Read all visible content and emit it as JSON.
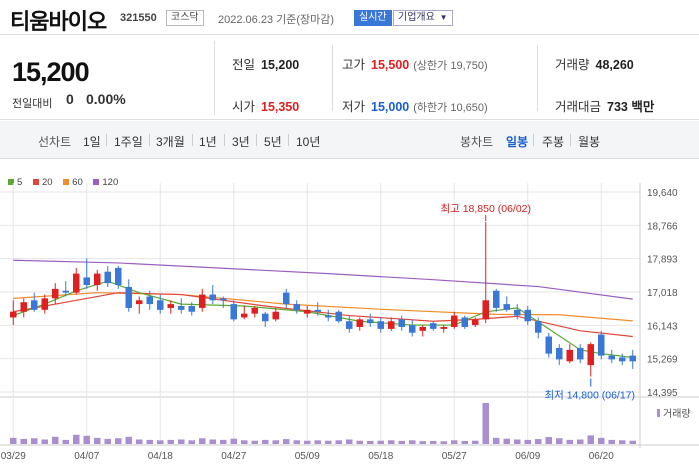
{
  "header": {
    "name": "티움바이오",
    "code": "321550",
    "market": "코스닥",
    "date_text": "2022.06.23 기준(장마감)",
    "realtime_label": "실시간",
    "company_label": "기업개요"
  },
  "quote": {
    "price": "15,200",
    "change_label": "전일대비",
    "change_value": "0",
    "change_pct": "0.00%",
    "prev_close_label": "전일",
    "prev_close": "15,200",
    "high_label": "고가",
    "high": "15,500",
    "upper_limit": "(상한가 19,750)",
    "volume_label": "거래량",
    "volume": "48,260",
    "open_label": "시가",
    "open": "15,350",
    "low_label": "저가",
    "low": "15,000",
    "lower_limit": "(하한가 10,650)",
    "amount_label": "거래대금",
    "amount": "733 백만"
  },
  "tabs": {
    "line_label": "선차트",
    "line_periods": [
      "1일",
      "1주일",
      "3개월",
      "1년",
      "3년",
      "5년",
      "10년"
    ],
    "candle_label": "봉차트",
    "candle_periods": [
      "일봉",
      "주봉",
      "월봉"
    ],
    "candle_active": "일봉"
  },
  "legend": [
    {
      "label": "5",
      "color": "#5aa832"
    },
    {
      "label": "20",
      "color": "#e0463a"
    },
    {
      "label": "60",
      "color": "#f08c2a"
    },
    {
      "label": "120",
      "color": "#9b5fc0"
    }
  ],
  "colors": {
    "up": "#e02020",
    "down": "#3a78d8",
    "grid": "#e6e6e6",
    "volume": "#a98fd0"
  },
  "chart_data": {
    "type": "candlestick",
    "y_ticks": [
      "19,640",
      "18,766",
      "17,893",
      "17,018",
      "16,143",
      "15,269",
      "14,395"
    ],
    "ylim": [
      14395,
      19640
    ],
    "x_tick_labels": [
      "03/29",
      "04/07",
      "04/18",
      "04/27",
      "05/09",
      "05/18",
      "05/27",
      "06/09",
      "06/20"
    ],
    "max_annotation": "최고 18,850 (06/02)",
    "min_annotation": "최저 14,800 (06/17)",
    "volume_label": "거래량",
    "candles": [
      {
        "d": "03/29",
        "o": 16350,
        "h": 16800,
        "l": 16150,
        "c": 16500
      },
      {
        "d": "03/30",
        "o": 16500,
        "h": 16850,
        "l": 16350,
        "c": 16750
      },
      {
        "d": "03/31",
        "o": 16800,
        "h": 17000,
        "l": 16500,
        "c": 16550
      },
      {
        "d": "04/01",
        "o": 16550,
        "h": 16950,
        "l": 16450,
        "c": 16850
      },
      {
        "d": "04/04",
        "o": 16850,
        "h": 17250,
        "l": 16700,
        "c": 17100
      },
      {
        "d": "04/05",
        "o": 17050,
        "h": 17300,
        "l": 16900,
        "c": 17000
      },
      {
        "d": "04/06",
        "o": 17000,
        "h": 17650,
        "l": 16950,
        "c": 17500
      },
      {
        "d": "04/07",
        "o": 17400,
        "h": 17900,
        "l": 17100,
        "c": 17200
      },
      {
        "d": "04/08",
        "o": 17200,
        "h": 17600,
        "l": 17050,
        "c": 17500
      },
      {
        "d": "04/11",
        "o": 17550,
        "h": 17700,
        "l": 17150,
        "c": 17250
      },
      {
        "d": "04/12",
        "o": 17650,
        "h": 17700,
        "l": 17100,
        "c": 17200
      },
      {
        "d": "04/13",
        "o": 17150,
        "h": 17350,
        "l": 16500,
        "c": 16600
      },
      {
        "d": "04/14",
        "o": 16700,
        "h": 16900,
        "l": 16450,
        "c": 16800
      },
      {
        "d": "04/15",
        "o": 16900,
        "h": 17050,
        "l": 16550,
        "c": 16700
      },
      {
        "d": "04/18",
        "o": 16800,
        "h": 16950,
        "l": 16450,
        "c": 16550
      },
      {
        "d": "04/19",
        "o": 16600,
        "h": 16800,
        "l": 16450,
        "c": 16700
      },
      {
        "d": "04/20",
        "o": 16650,
        "h": 16850,
        "l": 16450,
        "c": 16550
      },
      {
        "d": "04/21",
        "o": 16650,
        "h": 16750,
        "l": 16400,
        "c": 16500
      },
      {
        "d": "04/22",
        "o": 16600,
        "h": 17100,
        "l": 16500,
        "c": 16950
      },
      {
        "d": "04/25",
        "o": 16950,
        "h": 17200,
        "l": 16700,
        "c": 16800
      },
      {
        "d": "04/26",
        "o": 16850,
        "h": 16900,
        "l": 16600,
        "c": 16800
      },
      {
        "d": "04/27",
        "o": 16700,
        "h": 16800,
        "l": 16250,
        "c": 16300
      },
      {
        "d": "04/28",
        "o": 16350,
        "h": 16650,
        "l": 16300,
        "c": 16450
      },
      {
        "d": "04/29",
        "o": 16450,
        "h": 16650,
        "l": 16350,
        "c": 16600
      },
      {
        "d": "05/02",
        "o": 16450,
        "h": 16500,
        "l": 16100,
        "c": 16250
      },
      {
        "d": "05/03",
        "o": 16300,
        "h": 16600,
        "l": 16250,
        "c": 16500
      },
      {
        "d": "05/04",
        "o": 17000,
        "h": 17100,
        "l": 16600,
        "c": 16700
      },
      {
        "d": "05/06",
        "o": 16700,
        "h": 16800,
        "l": 16450,
        "c": 16550
      },
      {
        "d": "05/09",
        "o": 16450,
        "h": 16650,
        "l": 16350,
        "c": 16550
      },
      {
        "d": "05/10",
        "o": 16550,
        "h": 16750,
        "l": 16400,
        "c": 16500
      },
      {
        "d": "05/11",
        "o": 16400,
        "h": 16550,
        "l": 16250,
        "c": 16350
      },
      {
        "d": "05/12",
        "o": 16500,
        "h": 16550,
        "l": 16200,
        "c": 16250
      },
      {
        "d": "05/13",
        "o": 16250,
        "h": 16400,
        "l": 15950,
        "c": 16050
      },
      {
        "d": "05/16",
        "o": 16100,
        "h": 16350,
        "l": 16000,
        "c": 16300
      },
      {
        "d": "05/17",
        "o": 16300,
        "h": 16450,
        "l": 16100,
        "c": 16200
      },
      {
        "d": "05/18",
        "o": 16250,
        "h": 16350,
        "l": 15950,
        "c": 16050
      },
      {
        "d": "05/19",
        "o": 16050,
        "h": 16350,
        "l": 16000,
        "c": 16250
      },
      {
        "d": "05/20",
        "o": 16300,
        "h": 16400,
        "l": 16000,
        "c": 16100
      },
      {
        "d": "05/23",
        "o": 16150,
        "h": 16300,
        "l": 15850,
        "c": 15950
      },
      {
        "d": "05/24",
        "o": 16000,
        "h": 16150,
        "l": 15850,
        "c": 16100
      },
      {
        "d": "05/25",
        "o": 16200,
        "h": 16250,
        "l": 16000,
        "c": 16050
      },
      {
        "d": "05/26",
        "o": 16050,
        "h": 16150,
        "l": 15950,
        "c": 16100
      },
      {
        "d": "05/27",
        "o": 16100,
        "h": 16500,
        "l": 16050,
        "c": 16400
      },
      {
        "d": "05/30",
        "o": 16350,
        "h": 16400,
        "l": 16050,
        "c": 16100
      },
      {
        "d": "05/31",
        "o": 16150,
        "h": 16350,
        "l": 16100,
        "c": 16300
      },
      {
        "d": "06/02",
        "o": 16300,
        "h": 18850,
        "l": 16200,
        "c": 16800
      },
      {
        "d": "06/03",
        "o": 17050,
        "h": 17100,
        "l": 16500,
        "c": 16600
      },
      {
        "d": "06/07",
        "o": 16700,
        "h": 16900,
        "l": 16500,
        "c": 16550
      },
      {
        "d": "06/08",
        "o": 16550,
        "h": 16700,
        "l": 16300,
        "c": 16400
      },
      {
        "d": "06/09",
        "o": 16550,
        "h": 16650,
        "l": 16150,
        "c": 16250
      },
      {
        "d": "06/10",
        "o": 16250,
        "h": 16350,
        "l": 15800,
        "c": 15950
      },
      {
        "d": "06/13",
        "o": 15850,
        "h": 15950,
        "l": 15300,
        "c": 15400
      },
      {
        "d": "06/14",
        "o": 15550,
        "h": 15650,
        "l": 15100,
        "c": 15250
      },
      {
        "d": "06/15",
        "o": 15200,
        "h": 15650,
        "l": 15150,
        "c": 15500
      },
      {
        "d": "06/16",
        "o": 15550,
        "h": 15650,
        "l": 15150,
        "c": 15250
      },
      {
        "d": "06/17",
        "o": 15100,
        "h": 15700,
        "l": 14800,
        "c": 15650
      },
      {
        "d": "06/20",
        "o": 15900,
        "h": 16000,
        "l": 15250,
        "c": 15350
      },
      {
        "d": "06/21",
        "o": 15350,
        "h": 15500,
        "l": 15150,
        "c": 15250
      },
      {
        "d": "06/22",
        "o": 15300,
        "h": 15400,
        "l": 15100,
        "c": 15200
      },
      {
        "d": "06/23",
        "o": 15350,
        "h": 15500,
        "l": 15000,
        "c": 15200
      }
    ],
    "volumes": [
      30,
      25,
      28,
      22,
      35,
      20,
      45,
      40,
      30,
      25,
      28,
      35,
      22,
      20,
      18,
      20,
      22,
      18,
      28,
      22,
      20,
      26,
      18,
      16,
      20,
      18,
      24,
      18,
      16,
      18,
      16,
      18,
      22,
      16,
      15,
      16,
      18,
      15,
      18,
      14,
      15,
      13,
      18,
      15,
      16,
      200,
      30,
      26,
      22,
      20,
      24,
      34,
      28,
      20,
      22,
      42,
      30,
      20,
      18,
      16
    ],
    "ma_lines": [
      {
        "name": "120",
        "color": "#9b5fc0",
        "points": [
          [
            0,
            17850
          ],
          [
            10,
            17780
          ],
          [
            20,
            17640
          ],
          [
            30,
            17500
          ],
          [
            40,
            17340
          ],
          [
            50,
            17160
          ],
          [
            59,
            16830
          ]
        ]
      },
      {
        "name": "60",
        "color": "#f08c2a",
        "points": [
          [
            0,
            16850
          ],
          [
            8,
            17000
          ],
          [
            16,
            16950
          ],
          [
            26,
            16700
          ],
          [
            36,
            16550
          ],
          [
            46,
            16430
          ],
          [
            52,
            16420
          ],
          [
            59,
            16260
          ]
        ]
      },
      {
        "name": "20",
        "color": "#e0463a",
        "points": [
          [
            0,
            16500
          ],
          [
            6,
            16800
          ],
          [
            10,
            17000
          ],
          [
            16,
            16950
          ],
          [
            24,
            16650
          ],
          [
            32,
            16400
          ],
          [
            40,
            16250
          ],
          [
            44,
            16300
          ],
          [
            48,
            16380
          ],
          [
            54,
            16000
          ],
          [
            59,
            15850
          ]
        ]
      },
      {
        "name": "5",
        "color": "#5aa832",
        "points": [
          [
            0,
            16400
          ],
          [
            3,
            16700
          ],
          [
            6,
            17050
          ],
          [
            9,
            17300
          ],
          [
            12,
            17000
          ],
          [
            16,
            16700
          ],
          [
            22,
            16650
          ],
          [
            28,
            16500
          ],
          [
            33,
            16250
          ],
          [
            38,
            16150
          ],
          [
            42,
            16150
          ],
          [
            45,
            16500
          ],
          [
            48,
            16600
          ],
          [
            51,
            16050
          ],
          [
            54,
            15500
          ],
          [
            56,
            15400
          ],
          [
            59,
            15300
          ]
        ]
      }
    ]
  }
}
